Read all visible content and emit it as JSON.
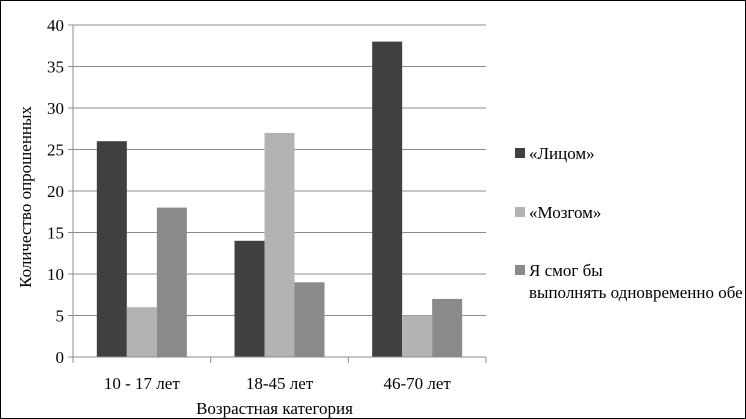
{
  "chart_data": {
    "type": "bar",
    "title": "",
    "xlabel": "Возрастная категория",
    "ylabel": "Количество опрошенных",
    "categories": [
      "10 - 17 лет",
      "18-45 лет",
      "46-70 лет"
    ],
    "series": [
      {
        "name": "«Лицом»",
        "values": [
          26,
          14,
          38
        ],
        "color": "#404040"
      },
      {
        "name": "«Мозгом»",
        "values": [
          6,
          27,
          5
        ],
        "color": "#b3b3b3"
      },
      {
        "name": "Я смог бы выполнять одновременно обе роли",
        "values": [
          18,
          9,
          7
        ],
        "color": "#8a8a8a"
      }
    ],
    "ylim": [
      0,
      40
    ],
    "yticks": [
      0,
      5,
      10,
      15,
      20,
      25,
      30,
      35,
      40
    ],
    "grid": true,
    "legend": "right"
  }
}
